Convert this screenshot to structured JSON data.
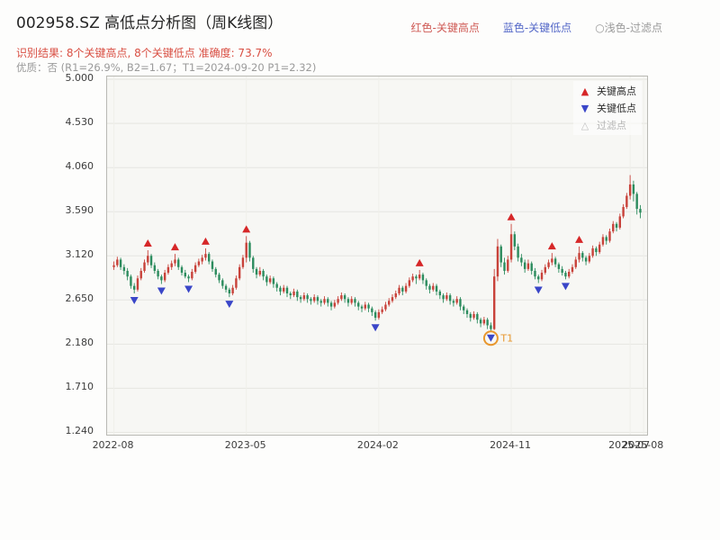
{
  "header": {
    "title": "002958.SZ 高低点分析图（周K线图）",
    "legend": [
      {
        "label": "红色-关键高点",
        "color": "#cf5a55"
      },
      {
        "label": "蓝色-关键低点",
        "color": "#5468c8"
      },
      {
        "label": "○浅色-过滤点",
        "color": "#9b9b9b"
      }
    ],
    "result_line": "识别结果: 8个关键高点, 8个关键低点  准确度: 73.7%",
    "quality_line": "优质：否 (R1=26.9%, B2=1.67；T1=2024-09-20 P1=2.32)"
  },
  "analysis": {
    "key_high_count": 8,
    "key_low_count": 8,
    "accuracy": "73.7%",
    "quality": "否",
    "R1": "26.9%",
    "B2": "1.67",
    "T1": "2024-09-20",
    "P1": "2.32"
  },
  "plot_legend": [
    {
      "label": "关键高点",
      "marker": "up",
      "color": "#d62728",
      "muted": false
    },
    {
      "label": "关键低点",
      "marker": "down",
      "color": "#3a46c8",
      "muted": false
    },
    {
      "label": "过滤点",
      "marker": "open",
      "color": "#c0c0c0",
      "muted": true
    }
  ],
  "chart_data": {
    "type": "candlestick",
    "title": "002958.SZ 高低点分析图（周K线图）",
    "symbol": "002958.SZ",
    "interval": "weekly",
    "start_date": "2022-08-05",
    "xlabel": "",
    "ylabel": "",
    "grid": true,
    "legend_position": "upper right",
    "ylim": [
      1.215,
      5.03
    ],
    "xlim": [
      -2,
      157
    ],
    "y_ticks": [
      "5.000",
      "4.530",
      "4.060",
      "3.590",
      "3.120",
      "2.650",
      "2.180",
      "1.710",
      "1.240"
    ],
    "x_ticks": [
      {
        "week": 0,
        "label": "2022-08"
      },
      {
        "week": 39,
        "label": "2023-05"
      },
      {
        "week": 78,
        "label": "2024-02"
      },
      {
        "week": 117,
        "label": "2024-11"
      },
      {
        "week": 152,
        "label": "2025-07"
      },
      {
        "week": 156,
        "label": "2025-08"
      }
    ],
    "colors": {
      "up": "#c8423a",
      "down": "#2c8c5e",
      "grid": "#e6e6e1",
      "grid_v": "#efefea",
      "high_marker": "#d62728",
      "low_marker": "#3a46c8"
    },
    "ohlc": [
      [
        3.0,
        3.06,
        2.97,
        3.02
      ],
      [
        3.02,
        3.11,
        3.0,
        3.08
      ],
      [
        3.08,
        3.1,
        2.97,
        3.0
      ],
      [
        3.0,
        3.03,
        2.92,
        2.96
      ],
      [
        2.96,
        2.99,
        2.86,
        2.9
      ],
      [
        2.9,
        2.92,
        2.77,
        2.8
      ],
      [
        2.8,
        2.83,
        2.72,
        2.76
      ],
      [
        2.76,
        2.91,
        2.74,
        2.88
      ],
      [
        2.88,
        2.99,
        2.86,
        2.96
      ],
      [
        2.96,
        3.08,
        2.94,
        3.05
      ],
      [
        3.05,
        3.18,
        3.02,
        3.12
      ],
      [
        3.12,
        3.14,
        2.99,
        3.02
      ],
      [
        3.02,
        3.05,
        2.93,
        2.96
      ],
      [
        2.96,
        2.98,
        2.87,
        2.9
      ],
      [
        2.9,
        2.92,
        2.82,
        2.86
      ],
      [
        2.86,
        2.97,
        2.84,
        2.94
      ],
      [
        2.94,
        3.03,
        2.92,
        3.0
      ],
      [
        3.0,
        3.07,
        2.97,
        3.04
      ],
      [
        3.04,
        3.14,
        3.01,
        3.08
      ],
      [
        3.08,
        3.1,
        2.97,
        3.0
      ],
      [
        3.0,
        3.02,
        2.91,
        2.94
      ],
      [
        2.94,
        2.97,
        2.88,
        2.9
      ],
      [
        2.9,
        2.92,
        2.84,
        2.88
      ],
      [
        2.88,
        2.98,
        2.86,
        2.95
      ],
      [
        2.95,
        3.05,
        2.93,
        3.02
      ],
      [
        3.02,
        3.09,
        3.0,
        3.06
      ],
      [
        3.06,
        3.13,
        3.03,
        3.1
      ],
      [
        3.1,
        3.2,
        3.07,
        3.14
      ],
      [
        3.14,
        3.16,
        3.03,
        3.06
      ],
      [
        3.06,
        3.08,
        2.95,
        2.98
      ],
      [
        2.98,
        3.0,
        2.89,
        2.92
      ],
      [
        2.92,
        2.94,
        2.83,
        2.86
      ],
      [
        2.86,
        2.88,
        2.77,
        2.8
      ],
      [
        2.8,
        2.82,
        2.73,
        2.76
      ],
      [
        2.76,
        2.78,
        2.68,
        2.72
      ],
      [
        2.72,
        2.81,
        2.7,
        2.78
      ],
      [
        2.78,
        2.91,
        2.76,
        2.88
      ],
      [
        2.88,
        3.03,
        2.86,
        3.0
      ],
      [
        3.0,
        3.13,
        2.98,
        3.1
      ],
      [
        3.1,
        3.33,
        3.05,
        3.26
      ],
      [
        3.26,
        3.28,
        3.06,
        3.1
      ],
      [
        3.1,
        3.12,
        2.94,
        2.98
      ],
      [
        2.98,
        3.0,
        2.88,
        2.92
      ],
      [
        2.92,
        3.0,
        2.9,
        2.96
      ],
      [
        2.96,
        2.98,
        2.86,
        2.9
      ],
      [
        2.9,
        2.92,
        2.8,
        2.84
      ],
      [
        2.84,
        2.91,
        2.82,
        2.88
      ],
      [
        2.88,
        2.9,
        2.78,
        2.82
      ],
      [
        2.82,
        2.84,
        2.74,
        2.78
      ],
      [
        2.78,
        2.8,
        2.7,
        2.74
      ],
      [
        2.74,
        2.81,
        2.72,
        2.78
      ],
      [
        2.78,
        2.8,
        2.68,
        2.72
      ],
      [
        2.72,
        2.74,
        2.66,
        2.7
      ],
      [
        2.7,
        2.77,
        2.68,
        2.74
      ],
      [
        2.74,
        2.76,
        2.64,
        2.68
      ],
      [
        2.68,
        2.7,
        2.62,
        2.66
      ],
      [
        2.66,
        2.73,
        2.64,
        2.7
      ],
      [
        2.7,
        2.72,
        2.62,
        2.66
      ],
      [
        2.66,
        2.68,
        2.6,
        2.64
      ],
      [
        2.64,
        2.71,
        2.62,
        2.68
      ],
      [
        2.68,
        2.7,
        2.6,
        2.64
      ],
      [
        2.64,
        2.66,
        2.58,
        2.62
      ],
      [
        2.62,
        2.69,
        2.6,
        2.66
      ],
      [
        2.66,
        2.68,
        2.58,
        2.62
      ],
      [
        2.62,
        2.64,
        2.54,
        2.58
      ],
      [
        2.58,
        2.65,
        2.56,
        2.62
      ],
      [
        2.62,
        2.69,
        2.6,
        2.66
      ],
      [
        2.66,
        2.73,
        2.64,
        2.7
      ],
      [
        2.7,
        2.72,
        2.62,
        2.66
      ],
      [
        2.66,
        2.68,
        2.58,
        2.62
      ],
      [
        2.62,
        2.69,
        2.6,
        2.66
      ],
      [
        2.66,
        2.68,
        2.58,
        2.62
      ],
      [
        2.62,
        2.64,
        2.54,
        2.58
      ],
      [
        2.58,
        2.6,
        2.52,
        2.56
      ],
      [
        2.56,
        2.63,
        2.54,
        2.6
      ],
      [
        2.6,
        2.62,
        2.52,
        2.56
      ],
      [
        2.56,
        2.58,
        2.48,
        2.52
      ],
      [
        2.52,
        2.54,
        2.43,
        2.46
      ],
      [
        2.46,
        2.55,
        2.44,
        2.52
      ],
      [
        2.52,
        2.58,
        2.5,
        2.55
      ],
      [
        2.55,
        2.63,
        2.53,
        2.6
      ],
      [
        2.6,
        2.67,
        2.58,
        2.64
      ],
      [
        2.64,
        2.71,
        2.62,
        2.68
      ],
      [
        2.68,
        2.75,
        2.66,
        2.72
      ],
      [
        2.72,
        2.81,
        2.7,
        2.78
      ],
      [
        2.78,
        2.8,
        2.7,
        2.74
      ],
      [
        2.74,
        2.83,
        2.72,
        2.8
      ],
      [
        2.8,
        2.89,
        2.78,
        2.86
      ],
      [
        2.86,
        2.93,
        2.84,
        2.9
      ],
      [
        2.9,
        2.92,
        2.82,
        2.88
      ],
      [
        2.88,
        2.97,
        2.86,
        2.92
      ],
      [
        2.92,
        2.94,
        2.82,
        2.86
      ],
      [
        2.86,
        2.88,
        2.76,
        2.8
      ],
      [
        2.8,
        2.82,
        2.72,
        2.76
      ],
      [
        2.76,
        2.83,
        2.74,
        2.8
      ],
      [
        2.8,
        2.82,
        2.7,
        2.74
      ],
      [
        2.74,
        2.76,
        2.66,
        2.7
      ],
      [
        2.7,
        2.72,
        2.62,
        2.66
      ],
      [
        2.66,
        2.73,
        2.64,
        2.7
      ],
      [
        2.7,
        2.72,
        2.6,
        2.64
      ],
      [
        2.64,
        2.66,
        2.58,
        2.62
      ],
      [
        2.62,
        2.69,
        2.6,
        2.66
      ],
      [
        2.66,
        2.68,
        2.54,
        2.58
      ],
      [
        2.58,
        2.6,
        2.5,
        2.54
      ],
      [
        2.54,
        2.56,
        2.46,
        2.5
      ],
      [
        2.5,
        2.52,
        2.42,
        2.46
      ],
      [
        2.46,
        2.53,
        2.44,
        2.5
      ],
      [
        2.5,
        2.52,
        2.4,
        2.44
      ],
      [
        2.44,
        2.46,
        2.36,
        2.4
      ],
      [
        2.4,
        2.47,
        2.38,
        2.44
      ],
      [
        2.44,
        2.46,
        2.34,
        2.38
      ],
      [
        2.38,
        2.41,
        2.32,
        2.34
      ],
      [
        2.34,
        2.98,
        2.33,
        2.9
      ],
      [
        2.9,
        3.3,
        2.85,
        3.22
      ],
      [
        3.22,
        3.24,
        3.0,
        3.05
      ],
      [
        3.05,
        3.1,
        2.92,
        2.96
      ],
      [
        2.96,
        3.12,
        2.94,
        3.08
      ],
      [
        3.08,
        3.46,
        3.05,
        3.35
      ],
      [
        3.35,
        3.38,
        3.18,
        3.22
      ],
      [
        3.22,
        3.25,
        3.06,
        3.1
      ],
      [
        3.1,
        3.14,
        3.01,
        3.05
      ],
      [
        3.05,
        3.08,
        2.94,
        2.98
      ],
      [
        2.98,
        3.08,
        2.96,
        3.04
      ],
      [
        3.04,
        3.06,
        2.92,
        2.96
      ],
      [
        2.96,
        2.99,
        2.87,
        2.9
      ],
      [
        2.9,
        2.92,
        2.83,
        2.87
      ],
      [
        2.87,
        2.97,
        2.85,
        2.94
      ],
      [
        2.94,
        3.03,
        2.92,
        3.0
      ],
      [
        3.0,
        3.08,
        2.98,
        3.05
      ],
      [
        3.05,
        3.15,
        3.02,
        3.09
      ],
      [
        3.09,
        3.11,
        3.0,
        3.03
      ],
      [
        3.03,
        3.05,
        2.94,
        2.98
      ],
      [
        2.98,
        3.01,
        2.91,
        2.94
      ],
      [
        2.94,
        2.96,
        2.87,
        2.9
      ],
      [
        2.9,
        2.98,
        2.88,
        2.95
      ],
      [
        2.95,
        3.03,
        2.93,
        3.0
      ],
      [
        3.0,
        3.11,
        2.98,
        3.08
      ],
      [
        3.08,
        3.22,
        3.05,
        3.15
      ],
      [
        3.15,
        3.17,
        3.06,
        3.1
      ],
      [
        3.1,
        3.12,
        3.02,
        3.06
      ],
      [
        3.06,
        3.15,
        3.04,
        3.12
      ],
      [
        3.12,
        3.23,
        3.1,
        3.2
      ],
      [
        3.2,
        3.22,
        3.12,
        3.16
      ],
      [
        3.16,
        3.27,
        3.14,
        3.24
      ],
      [
        3.24,
        3.35,
        3.22,
        3.32
      ],
      [
        3.32,
        3.34,
        3.24,
        3.28
      ],
      [
        3.28,
        3.41,
        3.26,
        3.38
      ],
      [
        3.38,
        3.49,
        3.36,
        3.46
      ],
      [
        3.46,
        3.48,
        3.38,
        3.42
      ],
      [
        3.42,
        3.57,
        3.4,
        3.54
      ],
      [
        3.54,
        3.67,
        3.52,
        3.64
      ],
      [
        3.64,
        3.79,
        3.62,
        3.76
      ],
      [
        3.76,
        3.98,
        3.72,
        3.88
      ],
      [
        3.88,
        3.92,
        3.7,
        3.78
      ],
      [
        3.78,
        3.8,
        3.56,
        3.62
      ],
      [
        3.62,
        3.66,
        3.52,
        3.58
      ]
    ],
    "key_highs": [
      {
        "week": 10,
        "date": "2022-10-14",
        "price": 3.18
      },
      {
        "week": 18,
        "date": "2022-12-09",
        "price": 3.14
      },
      {
        "week": 27,
        "date": "2023-02-10",
        "price": 3.2
      },
      {
        "week": 39,
        "date": "2023-05-05",
        "price": 3.33
      },
      {
        "week": 90,
        "date": "2024-04-26",
        "price": 2.97
      },
      {
        "week": 117,
        "date": "2024-11-01",
        "price": 3.46
      },
      {
        "week": 129,
        "date": "2025-01-24",
        "price": 3.15
      },
      {
        "week": 137,
        "date": "2025-03-21",
        "price": 3.22
      }
    ],
    "key_lows": [
      {
        "week": 6,
        "date": "2022-09-16",
        "price": 2.72
      },
      {
        "week": 14,
        "date": "2022-11-11",
        "price": 2.82
      },
      {
        "week": 22,
        "date": "2023-01-06",
        "price": 2.84
      },
      {
        "week": 34,
        "date": "2023-03-31",
        "price": 2.68
      },
      {
        "week": 77,
        "date": "2024-01-26",
        "price": 2.43
      },
      {
        "week": 111,
        "date": "2024-09-20",
        "price": 2.32
      },
      {
        "week": 125,
        "date": "2024-12-27",
        "price": 2.83
      },
      {
        "week": 133,
        "date": "2025-02-21",
        "price": 2.87
      }
    ],
    "t1_marker": {
      "week": 111,
      "date": "2024-09-20",
      "price": 2.32,
      "label": "T1",
      "color": "#e8972e"
    }
  }
}
